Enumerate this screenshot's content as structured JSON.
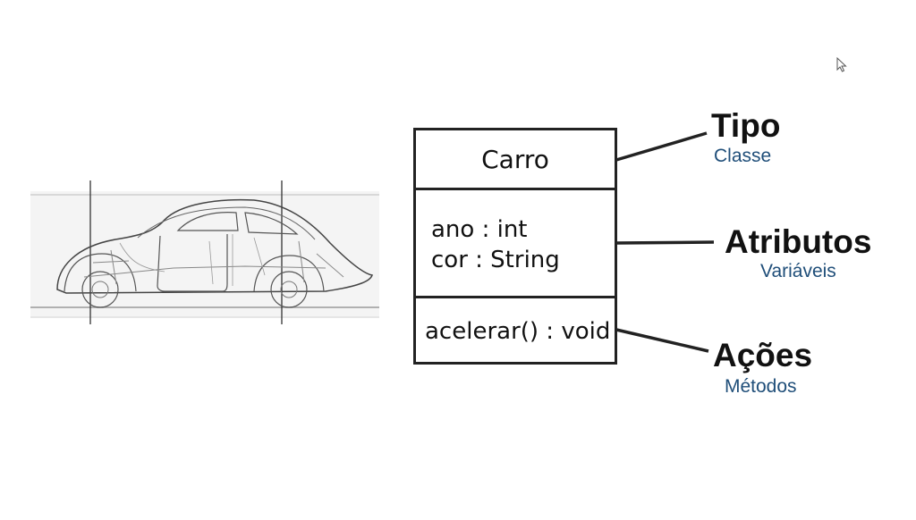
{
  "uml_class": {
    "name": "Carro",
    "attributes": [
      "ano : int",
      "cor : String"
    ],
    "methods": [
      "acelerar() : void"
    ]
  },
  "labels": {
    "tipo": {
      "title": "Tipo",
      "subtitle": "Classe"
    },
    "atributos": {
      "title": "Atributos",
      "subtitle": "Variáveis"
    },
    "acoes": {
      "title": "Ações",
      "subtitle": "Métodos"
    }
  },
  "colors": {
    "subtitle": "#1f4e79",
    "lines": "#222222"
  },
  "icons": {
    "cursor": "mouse-pointer-icon",
    "illustration": "car-blueprint"
  }
}
